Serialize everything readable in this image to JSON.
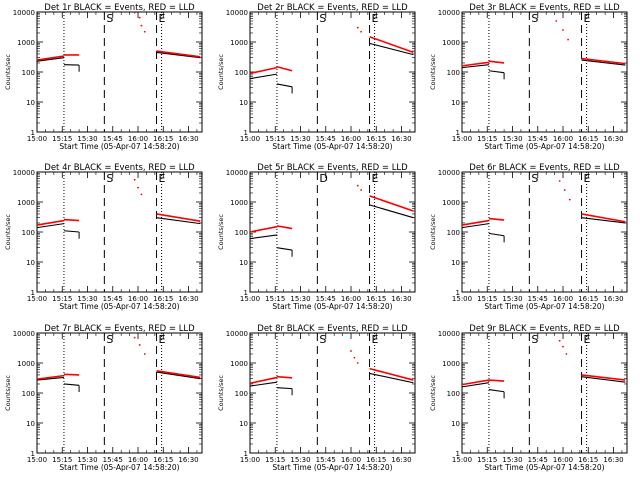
{
  "figure": {
    "xlabel": "Start Time (05-Apr-07 14:58:20)",
    "ylabel": "Counts/sec",
    "xticks": [
      "15:00",
      "15:15",
      "15:30",
      "15:45",
      "16:00",
      "16:15",
      "16:30"
    ],
    "yticks": [
      "1",
      "10",
      "100",
      "1000",
      "10000"
    ],
    "colors": {
      "events": "#000000",
      "lld": "#ff0000",
      "axes": "#000000"
    }
  },
  "chart_data": [
    {
      "type": "line",
      "title": "Det 1r BLACK = Events, RED = LLD",
      "xlabel": "Start Time (05-Apr-07 14:58:20)",
      "ylabel": "Counts/sec",
      "ylog": true,
      "xlim": [
        "15:00",
        "16:38"
      ],
      "ylim": [
        1,
        10000
      ],
      "markers": [
        {
          "time": "15:16",
          "label": "",
          "style": "dotted"
        },
        {
          "time": "15:40",
          "label": "S",
          "style": "dashed"
        },
        {
          "time": "16:11",
          "label": "E",
          "style": "dashed"
        },
        {
          "time": "16:14",
          "label": "",
          "style": "dotted"
        }
      ],
      "series": [
        {
          "name": "Events",
          "color": "#000000",
          "segments": [
            {
              "t0": "15:00",
              "t1": "15:16",
              "v0": 230,
              "v1": 300
            },
            {
              "t0": "15:16",
              "t1": "15:25",
              "v0": 175,
              "v1": 170
            },
            {
              "t0": "16:11",
              "t1": "16:37",
              "v0": 450,
              "v1": 300
            }
          ]
        },
        {
          "name": "LLD",
          "color": "#ff0000",
          "segments": [
            {
              "t0": "15:00",
              "t1": "15:16",
              "v0": 250,
              "v1": 340
            },
            {
              "t0": "15:16",
              "t1": "15:25",
              "v0": 370,
              "v1": 370
            },
            {
              "t0": "16:11",
              "t1": "16:37",
              "v0": 500,
              "v1": 320
            }
          ],
          "points": [
            {
              "t": "15:58",
              "v": 9500
            },
            {
              "t": "16:01",
              "v": 6500
            },
            {
              "t": "16:02",
              "v": 3500
            },
            {
              "t": "16:04",
              "v": 2200
            }
          ]
        }
      ]
    },
    {
      "type": "line",
      "title": "Det 2r BLACK = Events, RED = LLD",
      "xlabel": "Start Time (05-Apr-07 14:58:20)",
      "ylabel": "Counts/sec",
      "ylog": true,
      "xlim": [
        "15:00",
        "16:38"
      ],
      "ylim": [
        1,
        10000
      ],
      "markers": [
        {
          "time": "15:16",
          "label": "",
          "style": "dotted"
        },
        {
          "time": "15:40",
          "label": "S",
          "style": "dashed"
        },
        {
          "time": "16:11",
          "label": "E",
          "style": "dashed"
        },
        {
          "time": "16:14",
          "label": "",
          "style": "dotted"
        }
      ],
      "series": [
        {
          "name": "Events",
          "color": "#000000",
          "segments": [
            {
              "t0": "15:00",
              "t1": "15:16",
              "v0": 60,
              "v1": 85
            },
            {
              "t0": "15:16",
              "t1": "15:25",
              "v0": 40,
              "v1": 32
            },
            {
              "t0": "16:11",
              "t1": "16:37",
              "v0": 900,
              "v1": 380
            }
          ]
        },
        {
          "name": "LLD",
          "color": "#ff0000",
          "segments": [
            {
              "t0": "15:00",
              "t1": "15:16",
              "v0": 90,
              "v1": 140
            },
            {
              "t0": "15:16",
              "t1": "15:25",
              "v0": 150,
              "v1": 110
            },
            {
              "t0": "16:11",
              "t1": "16:37",
              "v0": 1500,
              "v1": 450
            }
          ],
          "points": [
            {
              "t": "16:04",
              "v": 3000
            },
            {
              "t": "16:06",
              "v": 2200
            }
          ]
        }
      ]
    },
    {
      "type": "line",
      "title": "Det 3r BLACK = Events, RED = LLD",
      "xlabel": "Start Time (05-Apr-07 14:58:20)",
      "ylabel": "Counts/sec",
      "ylog": true,
      "xlim": [
        "15:00",
        "16:38"
      ],
      "ylim": [
        1,
        10000
      ],
      "markers": [
        {
          "time": "15:16",
          "label": "",
          "style": "dotted"
        },
        {
          "time": "15:40",
          "label": "S",
          "style": "dashed"
        },
        {
          "time": "16:11",
          "label": "E",
          "style": "dashed"
        },
        {
          "time": "16:14",
          "label": "",
          "style": "dotted"
        }
      ],
      "series": [
        {
          "name": "Events",
          "color": "#000000",
          "segments": [
            {
              "t0": "15:00",
              "t1": "15:16",
              "v0": 140,
              "v1": 175
            },
            {
              "t0": "15:16",
              "t1": "15:25",
              "v0": 110,
              "v1": 95
            },
            {
              "t0": "16:11",
              "t1": "16:37",
              "v0": 250,
              "v1": 170
            }
          ]
        },
        {
          "name": "LLD",
          "color": "#ff0000",
          "segments": [
            {
              "t0": "15:00",
              "t1": "15:16",
              "v0": 160,
              "v1": 210
            },
            {
              "t0": "15:16",
              "t1": "15:25",
              "v0": 230,
              "v1": 200
            },
            {
              "t0": "16:11",
              "t1": "16:37",
              "v0": 280,
              "v1": 190
            }
          ],
          "points": [
            {
              "t": "15:56",
              "v": 5000
            },
            {
              "t": "16:00",
              "v": 2500
            },
            {
              "t": "16:03",
              "v": 1200
            }
          ]
        }
      ]
    },
    {
      "type": "line",
      "title": "Det 4r BLACK = Events, RED = LLD",
      "xlabel": "Start Time (05-Apr-07 14:58:20)",
      "ylabel": "Counts/sec",
      "ylog": true,
      "xlim": [
        "15:00",
        "16:38"
      ],
      "ylim": [
        1,
        10000
      ],
      "markers": [
        {
          "time": "15:16",
          "label": "",
          "style": "dotted"
        },
        {
          "time": "15:40",
          "label": "S",
          "style": "dashed"
        },
        {
          "time": "16:11",
          "label": "E",
          "style": "dashed"
        },
        {
          "time": "16:14",
          "label": "",
          "style": "dotted"
        }
      ],
      "series": [
        {
          "name": "Events",
          "color": "#000000",
          "segments": [
            {
              "t0": "15:00",
              "t1": "15:16",
              "v0": 140,
              "v1": 190
            },
            {
              "t0": "15:16",
              "t1": "15:25",
              "v0": 110,
              "v1": 100
            },
            {
              "t0": "16:11",
              "t1": "16:37",
              "v0": 300,
              "v1": 190
            }
          ]
        },
        {
          "name": "LLD",
          "color": "#ff0000",
          "segments": [
            {
              "t0": "15:00",
              "t1": "15:16",
              "v0": 170,
              "v1": 240
            },
            {
              "t0": "15:16",
              "t1": "15:25",
              "v0": 260,
              "v1": 240
            },
            {
              "t0": "16:11",
              "t1": "16:37",
              "v0": 400,
              "v1": 230
            }
          ],
          "points": [
            {
              "t": "15:58",
              "v": 5500
            },
            {
              "t": "16:00",
              "v": 3000
            },
            {
              "t": "16:02",
              "v": 1800
            }
          ]
        }
      ]
    },
    {
      "type": "line",
      "title": "Det 5r BLACK = Events, RED = LLD",
      "xlabel": "Start Time (05-Apr-07 14:58:20)",
      "ylabel": "Counts/sec",
      "ylog": true,
      "xlim": [
        "15:00",
        "16:38"
      ],
      "ylim": [
        1,
        10000
      ],
      "markers": [
        {
          "time": "15:16",
          "label": "",
          "style": "dotted"
        },
        {
          "time": "15:40",
          "label": "D",
          "style": "dashed"
        },
        {
          "time": "16:11",
          "label": "E",
          "style": "dashed"
        },
        {
          "time": "16:14",
          "label": "",
          "style": "dotted"
        }
      ],
      "series": [
        {
          "name": "Events",
          "color": "#000000",
          "segments": [
            {
              "t0": "15:00",
              "t1": "15:16",
              "v0": 60,
              "v1": 80
            },
            {
              "t0": "15:16",
              "t1": "15:25",
              "v0": 30,
              "v1": 25
            },
            {
              "t0": "16:11",
              "t1": "16:37",
              "v0": 800,
              "v1": 300
            }
          ]
        },
        {
          "name": "LLD",
          "color": "#ff0000",
          "segments": [
            {
              "t0": "15:00",
              "t1": "15:16",
              "v0": 100,
              "v1": 150
            },
            {
              "t0": "15:16",
              "t1": "15:25",
              "v0": 160,
              "v1": 130
            },
            {
              "t0": "16:11",
              "t1": "16:37",
              "v0": 1600,
              "v1": 500
            }
          ],
          "points": [
            {
              "t": "16:04",
              "v": 3500
            },
            {
              "t": "16:06",
              "v": 2500
            }
          ]
        }
      ]
    },
    {
      "type": "line",
      "title": "Det 6r BLACK = Events, RED = LLD",
      "xlabel": "Start Time (05-Apr-07 14:58:20)",
      "ylabel": "Counts/sec",
      "ylog": true,
      "xlim": [
        "15:00",
        "16:38"
      ],
      "ylim": [
        1,
        10000
      ],
      "markers": [
        {
          "time": "15:16",
          "label": "",
          "style": "dotted"
        },
        {
          "time": "15:40",
          "label": "S",
          "style": "dashed"
        },
        {
          "time": "16:11",
          "label": "E",
          "style": "dashed"
        },
        {
          "time": "16:14",
          "label": "",
          "style": "dotted"
        }
      ],
      "series": [
        {
          "name": "Events",
          "color": "#000000",
          "segments": [
            {
              "t0": "15:00",
              "t1": "15:16",
              "v0": 140,
              "v1": 190
            },
            {
              "t0": "15:16",
              "t1": "15:25",
              "v0": 90,
              "v1": 75
            },
            {
              "t0": "16:11",
              "t1": "16:37",
              "v0": 300,
              "v1": 200
            }
          ]
        },
        {
          "name": "LLD",
          "color": "#ff0000",
          "segments": [
            {
              "t0": "15:00",
              "t1": "15:16",
              "v0": 170,
              "v1": 240
            },
            {
              "t0": "15:16",
              "t1": "15:25",
              "v0": 280,
              "v1": 250
            },
            {
              "t0": "16:11",
              "t1": "16:37",
              "v0": 400,
              "v1": 220
            }
          ],
          "points": [
            {
              "t": "15:58",
              "v": 5000
            },
            {
              "t": "16:01",
              "v": 2500
            },
            {
              "t": "16:04",
              "v": 1200
            }
          ]
        }
      ]
    },
    {
      "type": "line",
      "title": "Det 7r BLACK = Events, RED = LLD",
      "xlabel": "Start Time (05-Apr-07 14:58:20)",
      "ylabel": "Counts/sec",
      "ylog": true,
      "xlim": [
        "15:00",
        "16:38"
      ],
      "ylim": [
        1,
        10000
      ],
      "markers": [
        {
          "time": "15:16",
          "label": "",
          "style": "dotted"
        },
        {
          "time": "15:40",
          "label": "S",
          "style": "dashed"
        },
        {
          "time": "16:11",
          "label": "E",
          "style": "dashed"
        },
        {
          "time": "16:14",
          "label": "",
          "style": "dotted"
        }
      ],
      "series": [
        {
          "name": "Events",
          "color": "#000000",
          "segments": [
            {
              "t0": "15:00",
              "t1": "15:16",
              "v0": 270,
              "v1": 330
            },
            {
              "t0": "15:16",
              "t1": "15:25",
              "v0": 200,
              "v1": 180
            },
            {
              "t0": "16:11",
              "t1": "16:37",
              "v0": 500,
              "v1": 300
            }
          ]
        },
        {
          "name": "LLD",
          "color": "#ff0000",
          "segments": [
            {
              "t0": "15:00",
              "t1": "15:16",
              "v0": 290,
              "v1": 380
            },
            {
              "t0": "15:16",
              "t1": "15:25",
              "v0": 420,
              "v1": 400
            },
            {
              "t0": "16:11",
              "t1": "16:37",
              "v0": 550,
              "v1": 330
            }
          ],
          "points": [
            {
              "t": "15:58",
              "v": 7000
            },
            {
              "t": "16:01",
              "v": 4000
            },
            {
              "t": "16:04",
              "v": 2000
            }
          ]
        }
      ]
    },
    {
      "type": "line",
      "title": "Det 8r BLACK = Events, RED = LLD",
      "xlabel": "Start Time (05-Apr-07 14:58:20)",
      "ylabel": "Counts/sec",
      "ylog": true,
      "xlim": [
        "15:00",
        "16:38"
      ],
      "ylim": [
        1,
        10000
      ],
      "markers": [
        {
          "time": "15:16",
          "label": "",
          "style": "dotted"
        },
        {
          "time": "15:40",
          "label": "S",
          "style": "dashed"
        },
        {
          "time": "16:11",
          "label": "E",
          "style": "dashed"
        },
        {
          "time": "16:14",
          "label": "",
          "style": "dotted"
        }
      ],
      "series": [
        {
          "name": "Events",
          "color": "#000000",
          "segments": [
            {
              "t0": "15:00",
              "t1": "15:16",
              "v0": 170,
              "v1": 230
            },
            {
              "t0": "15:16",
              "t1": "15:25",
              "v0": 150,
              "v1": 140
            },
            {
              "t0": "16:11",
              "t1": "16:37",
              "v0": 450,
              "v1": 220
            }
          ]
        },
        {
          "name": "LLD",
          "color": "#ff0000",
          "segments": [
            {
              "t0": "15:00",
              "t1": "15:16",
              "v0": 210,
              "v1": 330
            },
            {
              "t0": "15:16",
              "t1": "15:25",
              "v0": 350,
              "v1": 320
            },
            {
              "t0": "16:11",
              "t1": "16:37",
              "v0": 650,
              "v1": 270
            }
          ],
          "points": [
            {
              "t": "16:00",
              "v": 2500
            },
            {
              "t": "16:02",
              "v": 1500
            },
            {
              "t": "16:04",
              "v": 1000
            }
          ]
        }
      ]
    },
    {
      "type": "line",
      "title": "Det 9r BLACK = Events, RED = LLD",
      "xlabel": "Start Time (05-Apr-07 14:58:20)",
      "ylabel": "Counts/sec",
      "ylog": true,
      "xlim": [
        "15:00",
        "16:38"
      ],
      "ylim": [
        1,
        10000
      ],
      "markers": [
        {
          "time": "15:16",
          "label": "",
          "style": "dotted"
        },
        {
          "time": "15:40",
          "label": "S",
          "style": "dashed"
        },
        {
          "time": "16:11",
          "label": "E",
          "style": "dashed"
        },
        {
          "time": "16:14",
          "label": "",
          "style": "dotted"
        }
      ],
      "series": [
        {
          "name": "Events",
          "color": "#000000",
          "segments": [
            {
              "t0": "15:00",
              "t1": "15:16",
              "v0": 160,
              "v1": 220
            },
            {
              "t0": "15:16",
              "t1": "15:25",
              "v0": 130,
              "v1": 110
            },
            {
              "t0": "16:11",
              "t1": "16:37",
              "v0": 350,
              "v1": 230
            }
          ]
        },
        {
          "name": "LLD",
          "color": "#ff0000",
          "segments": [
            {
              "t0": "15:00",
              "t1": "15:16",
              "v0": 190,
              "v1": 270
            },
            {
              "t0": "15:16",
              "t1": "15:25",
              "v0": 270,
              "v1": 250
            },
            {
              "t0": "16:11",
              "t1": "16:37",
              "v0": 400,
              "v1": 270
            }
          ],
          "points": [
            {
              "t": "15:58",
              "v": 5500
            },
            {
              "t": "16:00",
              "v": 3500
            },
            {
              "t": "16:02",
              "v": 2000
            }
          ]
        }
      ]
    }
  ]
}
